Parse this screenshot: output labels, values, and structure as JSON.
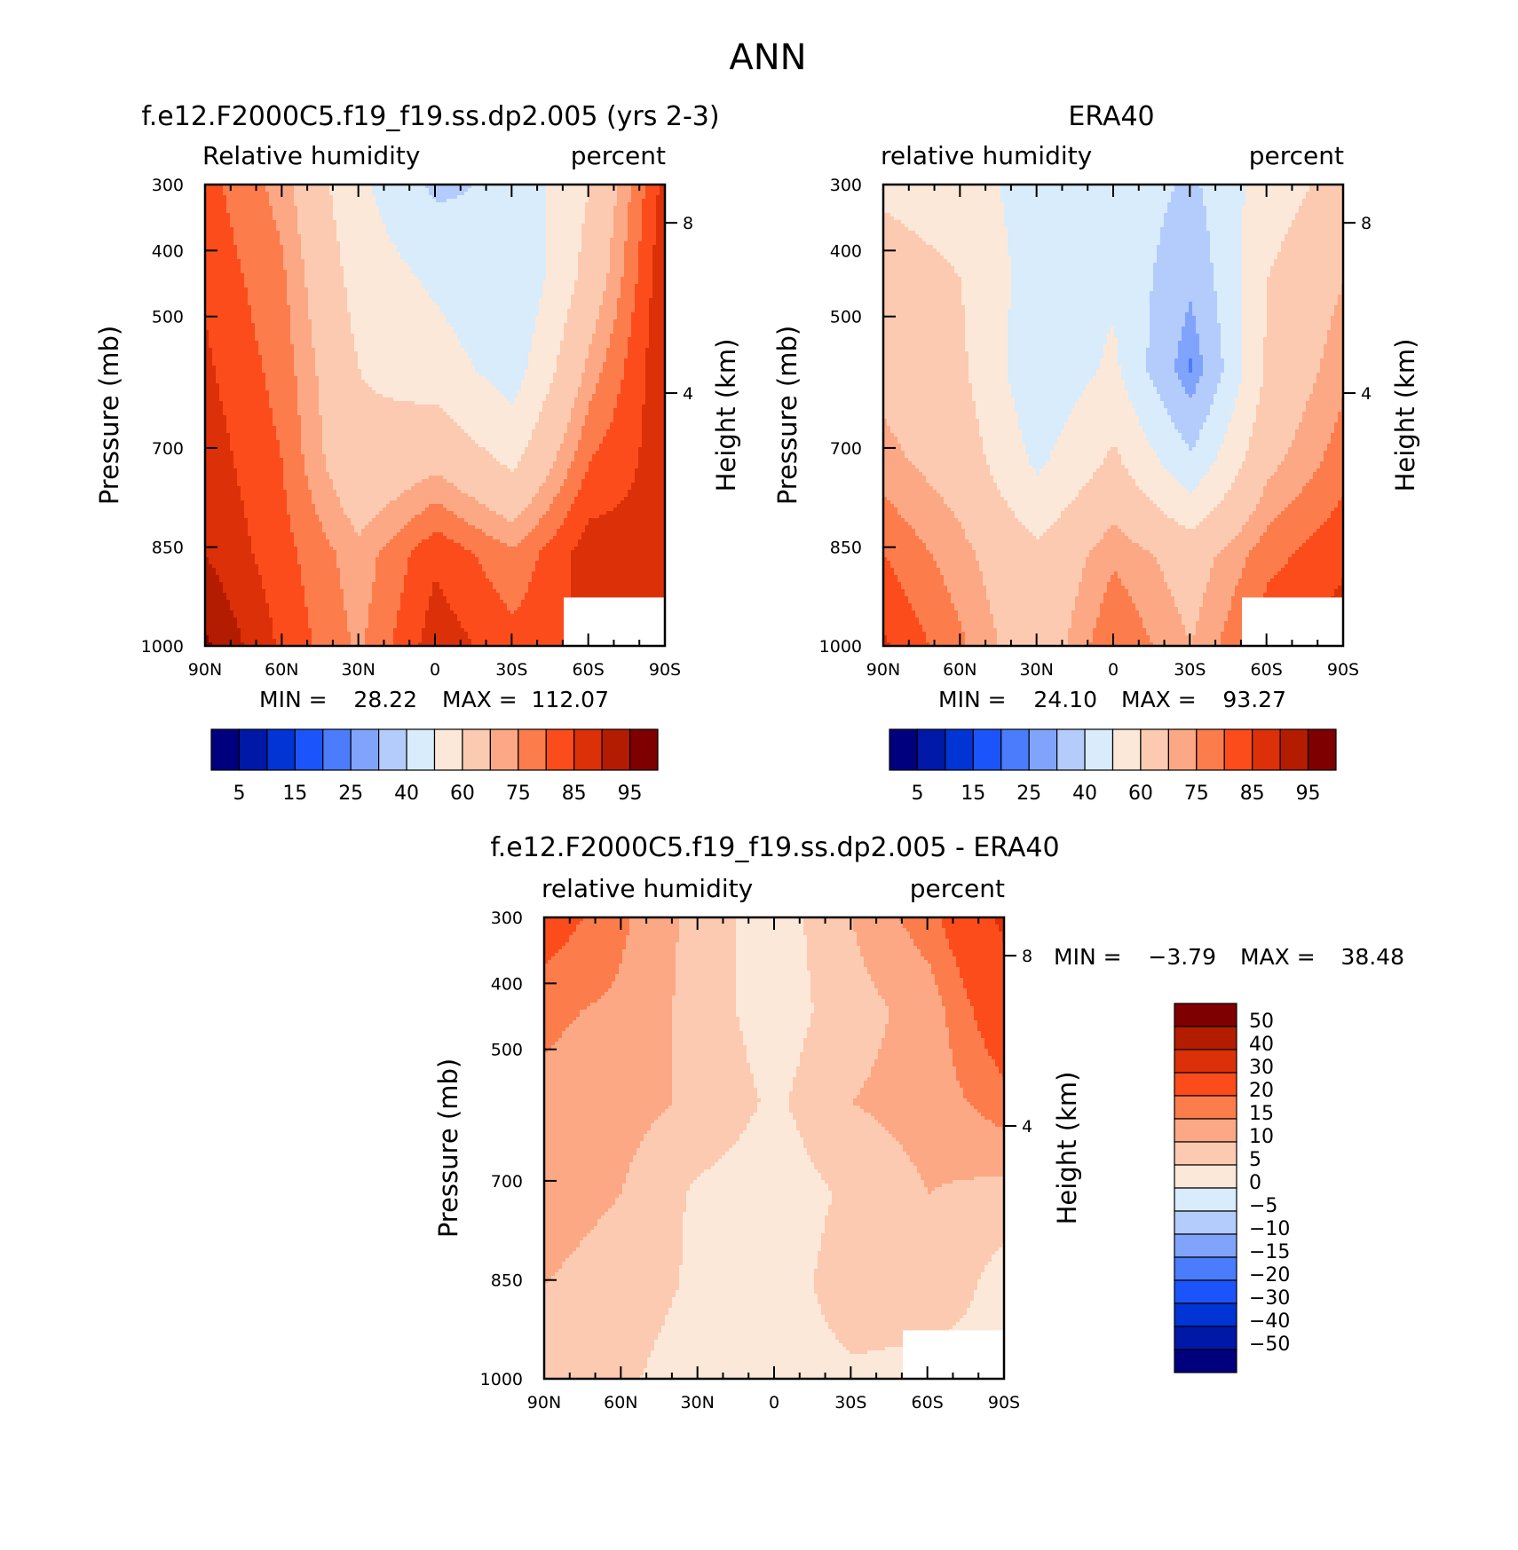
{
  "figure_title": "ANN",
  "colors": {
    "abs_scale": [
      "#00007f",
      "#0018a8",
      "#0034d4",
      "#1c54fc",
      "#4a7cfc",
      "#80a4fc",
      "#b4ccfc",
      "#d8ecfc",
      "#fce8d8",
      "#fccab0",
      "#fca884",
      "#fc7c4c",
      "#fc4c1c",
      "#dc3008",
      "#b41c00",
      "#7f0000"
    ],
    "diff_scale": [
      "#00007f",
      "#0018a8",
      "#0034d4",
      "#1c54fc",
      "#4a7cfc",
      "#80a4fc",
      "#b4ccfc",
      "#d8ecfc",
      "#fce8d8",
      "#fccab0",
      "#fca884",
      "#fc7c4c",
      "#fc4c1c",
      "#dc3008",
      "#b41c00",
      "#7f0000"
    ]
  },
  "chart_data": [
    {
      "type": "heatmap",
      "title": "f.e12.F2000C5.f19_f19.ss.dp2.005 (yrs 2-3)",
      "left_label": "Relative humidity",
      "right_label": "percent",
      "ylabel": "Pressure (mb)",
      "y2label": "Height (km)",
      "x_ticks": [
        "90N",
        "60N",
        "30N",
        "0",
        "30S",
        "60S",
        "90S"
      ],
      "y_ticks": [
        "300",
        "400",
        "500",
        "700",
        "850",
        "1000"
      ],
      "y2_ticks": [
        "8",
        "4"
      ],
      "latitudes": [
        90,
        60,
        30,
        0,
        -30,
        -60,
        -90
      ],
      "levels_mb": [
        300,
        400,
        500,
        700,
        850,
        1000
      ],
      "values": [
        [
          82,
          73,
          52,
          38,
          42,
          60,
          88
        ],
        [
          84,
          76,
          56,
          48,
          40,
          64,
          90
        ],
        [
          86,
          78,
          60,
          55,
          45,
          72,
          90
        ],
        [
          88,
          80,
          62,
          68,
          58,
          80,
          88
        ],
        [
          90,
          82,
          72,
          84,
          76,
          88,
          86
        ],
        [
          96,
          84,
          74,
          88,
          82,
          86,
          84
        ]
      ],
      "colorbar_labels": [
        "5",
        "15",
        "25",
        "40",
        "60",
        "75",
        "85",
        "95"
      ],
      "min_label": "MIN =",
      "min_value": "28.22",
      "max_label": "MAX =",
      "max_value": "112.07"
    },
    {
      "type": "heatmap",
      "title": "ERA40",
      "left_label": "relative humidity",
      "right_label": "percent",
      "ylabel": "Pressure (mb)",
      "y2label": "Height (km)",
      "x_ticks": [
        "90N",
        "60N",
        "30N",
        "0",
        "30S",
        "60S",
        "90S"
      ],
      "y_ticks": [
        "300",
        "400",
        "500",
        "700",
        "850",
        "1000"
      ],
      "y2_ticks": [
        "8",
        "4"
      ],
      "latitudes": [
        90,
        60,
        30,
        0,
        -30,
        -60,
        -90
      ],
      "levels_mb": [
        300,
        400,
        500,
        700,
        850,
        1000
      ],
      "values": [
        [
          58,
          55,
          45,
          48,
          38,
          55,
          64
        ],
        [
          65,
          60,
          45,
          48,
          32,
          60,
          70
        ],
        [
          68,
          62,
          42,
          52,
          24,
          62,
          74
        ],
        [
          72,
          66,
          48,
          62,
          42,
          68,
          78
        ],
        [
          80,
          72,
          62,
          74,
          66,
          78,
          84
        ],
        [
          86,
          76,
          64,
          80,
          70,
          84,
          88
        ]
      ],
      "colorbar_labels": [
        "5",
        "15",
        "25",
        "40",
        "60",
        "75",
        "85",
        "95"
      ],
      "min_label": "MIN =",
      "min_value": "24.10",
      "max_label": "MAX =",
      "max_value": "93.27"
    },
    {
      "type": "heatmap",
      "title": "f.e12.F2000C5.f19_f19.ss.dp2.005 - ERA40",
      "left_label": "relative humidity",
      "right_label": "percent",
      "ylabel": "Pressure (mb)",
      "y2label": "Height (km)",
      "x_ticks": [
        "90N",
        "60N",
        "30N",
        "0",
        "30S",
        "60S",
        "90S"
      ],
      "y_ticks": [
        "300",
        "400",
        "500",
        "700",
        "850",
        "1000"
      ],
      "y2_ticks": [
        "8",
        "4"
      ],
      "latitudes": [
        90,
        60,
        30,
        0,
        -30,
        -60,
        -90
      ],
      "levels_mb": [
        300,
        400,
        500,
        700,
        850,
        1000
      ],
      "values": [
        [
          24,
          16,
          8,
          2,
          10,
          18,
          32
        ],
        [
          16,
          14,
          8,
          2,
          8,
          12,
          26
        ],
        [
          14,
          12,
          9,
          4,
          10,
          12,
          18
        ],
        [
          12,
          10,
          4,
          2,
          6,
          10,
          8
        ],
        [
          10,
          8,
          4,
          2,
          8,
          10,
          2
        ],
        [
          10,
          6,
          2,
          2,
          4,
          2,
          2
        ]
      ],
      "colorbar_labels": [
        "50",
        "40",
        "30",
        "20",
        "15",
        "10",
        "5",
        "0",
        "−5",
        "−10",
        "−15",
        "−20",
        "−30",
        "−40",
        "−50"
      ],
      "min_label": "MIN =",
      "min_value": "−3.79",
      "max_label": "MAX =",
      "max_value": "38.48"
    }
  ]
}
